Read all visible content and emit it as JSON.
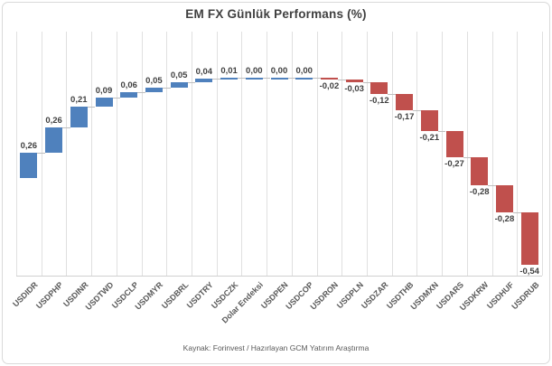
{
  "chart_data": {
    "type": "bar",
    "subtype": "waterfall",
    "title": "EM FX Günlük Performans (%)",
    "source_note": "Kaynak: Forinvest / Hazırlayan GCM Yatırım Araştırma",
    "categories": [
      "USDIDR",
      "USDPHP",
      "USDINR",
      "USDTWD",
      "USDCLP",
      "USDMYR",
      "USDBRL",
      "USDTRY",
      "USDCZK",
      "Dolar Endeksi",
      "USDPEN",
      "USDCOP",
      "USDRON",
      "USDPLN",
      "USDZAR",
      "USDTHB",
      "USDMXN",
      "USDARS",
      "USDKRW",
      "USDHUF",
      "USDRUB"
    ],
    "values": [
      0.26,
      0.26,
      0.21,
      0.09,
      0.06,
      0.05,
      0.05,
      0.04,
      0.01,
      0.0,
      0.0,
      0.0,
      -0.02,
      -0.03,
      -0.12,
      -0.17,
      -0.21,
      -0.27,
      -0.28,
      -0.28,
      -0.54
    ],
    "value_labels": [
      "0,26",
      "0,26",
      "0,21",
      "0,09",
      "0,06",
      "0,05",
      "0,05",
      "0,04",
      "0,01",
      "0,00",
      "0,00",
      "0,00",
      "-0,02",
      "-0,03",
      "-0,12",
      "-0,17",
      "-0,21",
      "-0,27",
      "-0,28",
      "-0,28",
      "-0,54"
    ],
    "xlabel": "",
    "ylabel": "",
    "ylim": [
      -1.0,
      1.5
    ],
    "grid": "vertical",
    "legend": "none",
    "positive_color": "#4F81BD",
    "negative_color": "#C0504D",
    "gridline_color": "#e0e0e0",
    "connector_color": "#bfbfbf",
    "label_color": "#404040",
    "axis_label_color": "#595959"
  }
}
